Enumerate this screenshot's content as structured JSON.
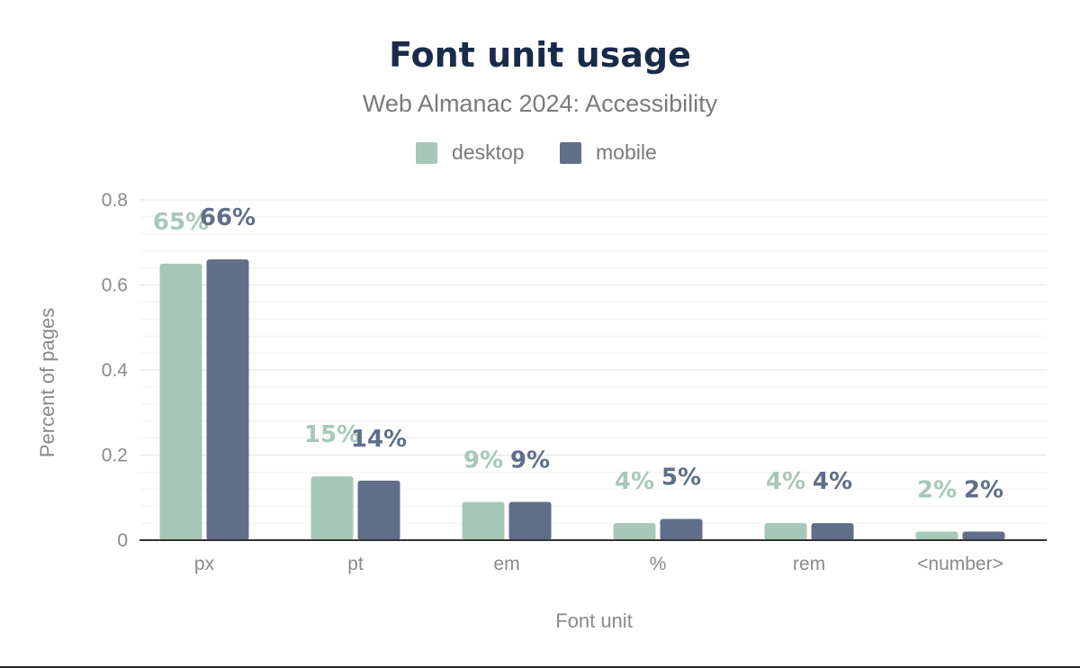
{
  "chart_data": {
    "type": "bar",
    "title": "Font unit usage",
    "subtitle": "Web Almanac 2024: Accessibility",
    "xlabel": "Font unit",
    "ylabel": "Percent of pages",
    "categories": [
      "px",
      "pt",
      "em",
      "%",
      "rem",
      "<number>"
    ],
    "series": [
      {
        "name": "desktop",
        "color": "#a7c8b8",
        "values": [
          0.65,
          0.15,
          0.09,
          0.04,
          0.04,
          0.02
        ],
        "labels": [
          "65%",
          "15%",
          "9%",
          "4%",
          "4%",
          "2%"
        ]
      },
      {
        "name": "mobile",
        "color": "#5f6f8a",
        "values": [
          0.66,
          0.14,
          0.09,
          0.05,
          0.04,
          0.02
        ],
        "labels": [
          "66%",
          "14%",
          "9%",
          "5%",
          "4%",
          "2%"
        ]
      }
    ],
    "ylim": [
      0,
      0.8
    ],
    "yticks": [
      "0",
      "0.2",
      "0.4",
      "0.6",
      "0.8"
    ],
    "grid": true,
    "legend_position": "top-center"
  }
}
